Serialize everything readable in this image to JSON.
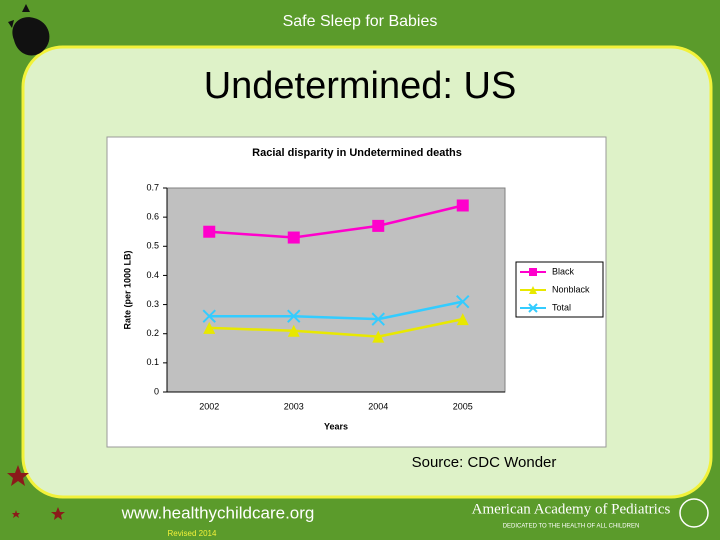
{
  "header": "Safe Sleep for Babies",
  "title": "Undetermined: US",
  "source": "Source: CDC Wonder",
  "footer": {
    "url": "www.healthychildcare.org",
    "revised": "Revised 2014",
    "org": "American Academy of Pediatrics",
    "tagline": "DEDICATED TO THE HEALTH OF ALL CHILDREN"
  },
  "chart_data": {
    "type": "line",
    "title": "Racial disparity in Undetermined deaths",
    "x_label": "Years",
    "y_label": "Rate (per 1000 LB)",
    "categories": [
      "2002",
      "2003",
      "2004",
      "2005"
    ],
    "series": [
      {
        "name": "Black",
        "color": "#ff00cc",
        "marker": "square",
        "values": [
          0.55,
          0.53,
          0.57,
          0.64
        ]
      },
      {
        "name": "Nonblack",
        "color": "#e8e800",
        "marker": "triangle",
        "values": [
          0.22,
          0.21,
          0.19,
          0.25
        ]
      },
      {
        "name": "Total",
        "color": "#33ccff",
        "marker": "x",
        "values": [
          0.26,
          0.26,
          0.25,
          0.31
        ]
      }
    ],
    "ylim": [
      0,
      0.7
    ],
    "yticks": [
      0,
      0.1,
      0.2,
      0.3,
      0.4,
      0.5,
      0.6,
      0.7
    ],
    "grid": false,
    "legend": "right"
  }
}
